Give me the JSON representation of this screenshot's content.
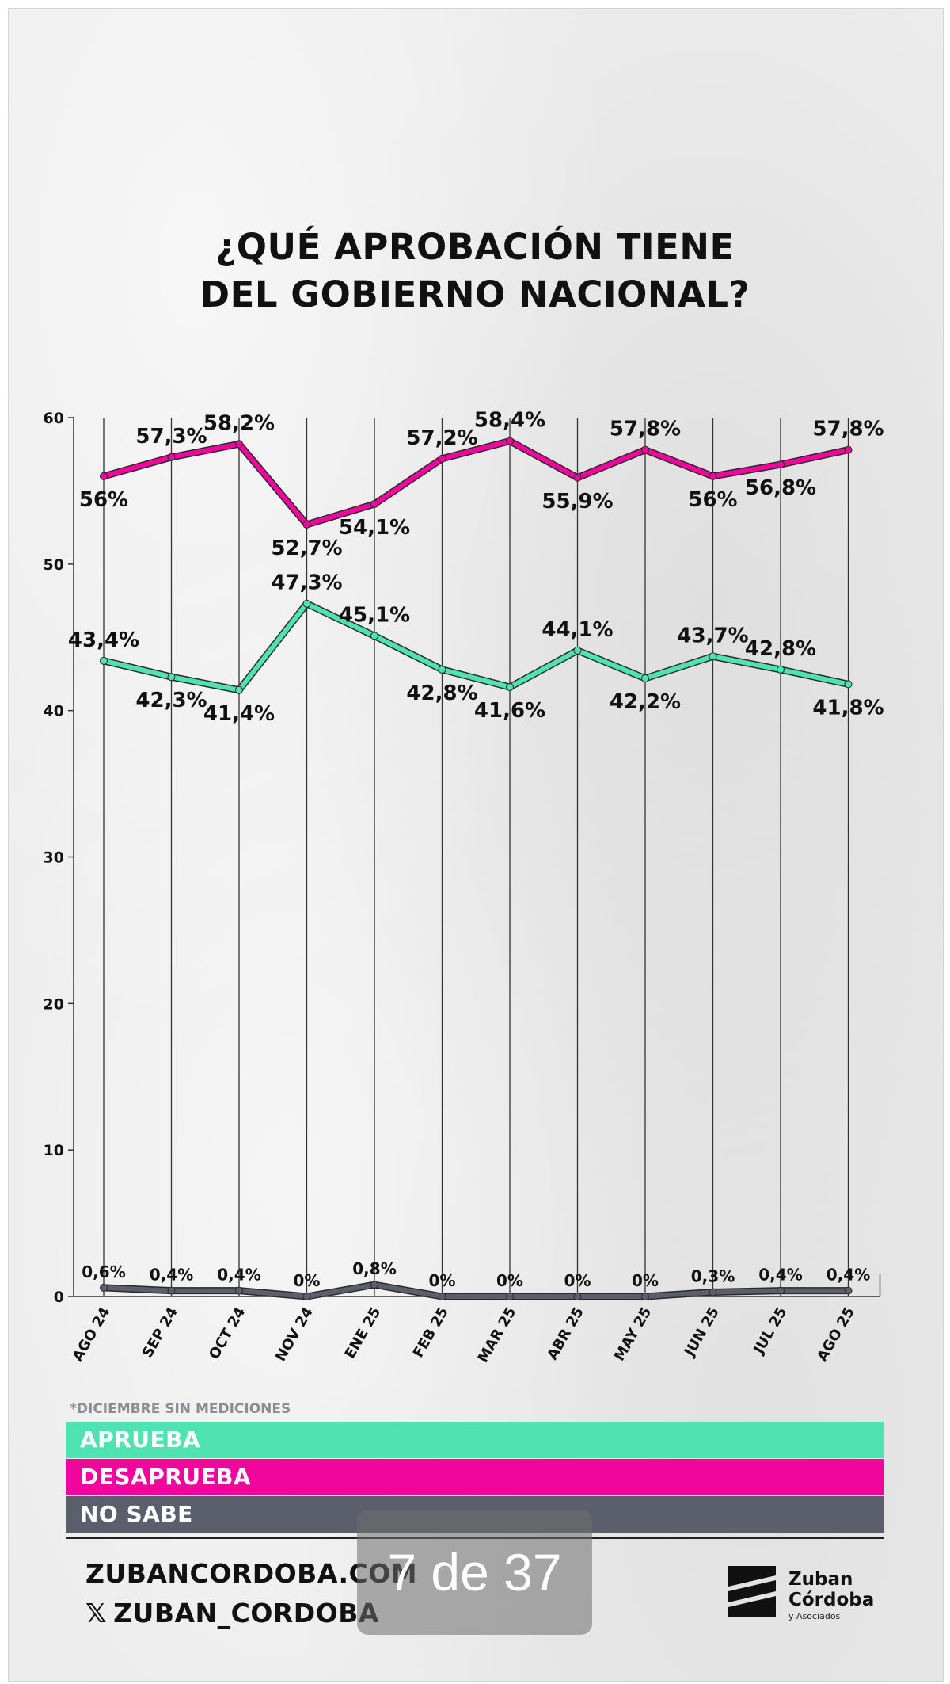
{
  "title": {
    "line1": "¿QUÉ APROBACIÓN TIENE",
    "line2": "DEL GOBIERNO NACIONAL?"
  },
  "note": "*DICIEMBRE SIN MEDICIONES",
  "legend": {
    "aprueba": "APRUEBA",
    "desaprueba": "DESAPRUEBA",
    "no_sabe": "NO SABE"
  },
  "footer": {
    "website": "ZUBANCORDOBA.COM",
    "social": "ZUBAN_CORDOBA",
    "logo_line1": "Zuban",
    "logo_line2": "Córdoba",
    "logo_sub": "y Asociados"
  },
  "page_indicator": "7 de 37",
  "colors": {
    "aprueba": "#4ee3b1",
    "desaprueba": "#f0069c",
    "no_sabe": "#5a5f6b",
    "aprueba_line": "#3ac79a",
    "desaprueba_line": "#c8148e",
    "no_sabe_line": "#6e7380"
  },
  "icons": {
    "social": "x-logo-icon",
    "brand": "zuban-cordoba-logo-icon"
  },
  "chart_data": {
    "type": "line",
    "categories": [
      "AGO 24",
      "SEP 24",
      "OCT 24",
      "NOV 24",
      "ENE 25",
      "FEB 25",
      "MAR 25",
      "ABR 25",
      "MAY 25",
      "JUN 25",
      "JUL 25",
      "AGO 25"
    ],
    "ylim": [
      0,
      60
    ],
    "yticks": [
      0,
      10,
      20,
      30,
      40,
      50,
      60
    ],
    "grid": "vertical",
    "series": [
      {
        "key": "desaprueba",
        "name": "DESAPRUEBA",
        "values": [
          56,
          57.3,
          58.2,
          52.7,
          54.1,
          57.2,
          58.4,
          55.9,
          57.8,
          56,
          56.8,
          57.8
        ],
        "labels": [
          "56%",
          "57,3%",
          "58,2%",
          "52,7%",
          "54,1%",
          "57,2%",
          "58,4%",
          "55,9%",
          "57,8%",
          "56%",
          "56,8%",
          "57,8%"
        ],
        "label_pos": [
          "below",
          "above",
          "above",
          "below",
          "below",
          "above",
          "above",
          "below",
          "above",
          "below",
          "below",
          "above"
        ]
      },
      {
        "key": "aprueba",
        "name": "APRUEBA",
        "values": [
          43.4,
          42.3,
          41.4,
          47.3,
          45.1,
          42.8,
          41.6,
          44.1,
          42.2,
          43.7,
          42.8,
          41.8
        ],
        "labels": [
          "43,4%",
          "42,3%",
          "41,4%",
          "47,3%",
          "45,1%",
          "42,8%",
          "41,6%",
          "44,1%",
          "42,2%",
          "43,7%",
          "42,8%",
          "41,8%"
        ],
        "label_pos": [
          "above",
          "below",
          "below",
          "above",
          "above",
          "below",
          "below",
          "above",
          "below",
          "above",
          "above",
          "below"
        ]
      },
      {
        "key": "no_sabe",
        "name": "NO SABE",
        "values": [
          0.6,
          0.4,
          0.4,
          0,
          0.8,
          0,
          0,
          0,
          0,
          0.3,
          0.4,
          0.4
        ],
        "labels": [
          "0,6%",
          "0,4%",
          "0,4%",
          "0%",
          "0,8%",
          "0%",
          "0%",
          "0%",
          "0%",
          "0,3%",
          "0,4%",
          "0,4%"
        ],
        "label_pos": [
          "above",
          "above",
          "above",
          "above",
          "above",
          "above",
          "above",
          "above",
          "above",
          "above",
          "above",
          "above"
        ]
      }
    ]
  }
}
